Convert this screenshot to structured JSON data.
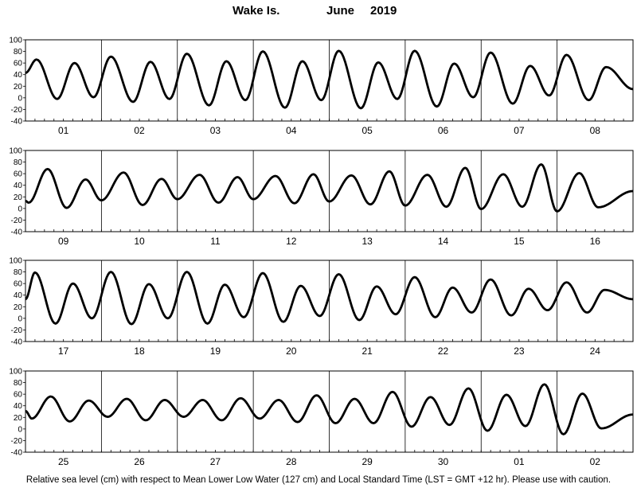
{
  "header": {
    "location": "Wake Is.",
    "month": "June",
    "year": "2019"
  },
  "footer": {
    "note": "Relative sea level (cm) with respect to Mean Lower Low Water (127 cm) and Local Standard Time (LST = GMT +12 hr). Please use with caution."
  },
  "chart_data": {
    "type": "line",
    "title": "Wake Is.          June   2019",
    "ylabel": "",
    "xlabel": "",
    "ylim": [
      -40,
      100
    ],
    "yticks": [
      -40,
      -20,
      0,
      20,
      40,
      60,
      80,
      100
    ],
    "grid": "vertical day lines",
    "hours_per_day": 24,
    "panels": [
      {
        "days": [
          "01",
          "02",
          "03",
          "04",
          "05",
          "06",
          "07",
          "08"
        ],
        "extrema": [
          [
            0,
            43
          ],
          [
            3.5,
            66
          ],
          [
            10,
            -2
          ],
          [
            15.5,
            60
          ],
          [
            21.5,
            1
          ],
          [
            27,
            71
          ],
          [
            34,
            -7
          ],
          [
            39.5,
            62
          ],
          [
            45.5,
            -2
          ],
          [
            51,
            76
          ],
          [
            58,
            -13
          ],
          [
            63.5,
            63
          ],
          [
            69.5,
            -4
          ],
          [
            75,
            80
          ],
          [
            82,
            -17
          ],
          [
            87.5,
            63
          ],
          [
            93.5,
            -4
          ],
          [
            99,
            81
          ],
          [
            106,
            -18
          ],
          [
            111.5,
            61
          ],
          [
            117.5,
            -2
          ],
          [
            123,
            81
          ],
          [
            130,
            -15
          ],
          [
            135.5,
            59
          ],
          [
            141.5,
            1
          ],
          [
            147,
            78
          ],
          [
            154,
            -10
          ],
          [
            159.5,
            55
          ],
          [
            165.5,
            4
          ],
          [
            171,
            74
          ],
          [
            178,
            -4
          ],
          [
            183.5,
            53
          ],
          [
            192,
            15
          ]
        ]
      },
      {
        "days": [
          "09",
          "10",
          "11",
          "12",
          "13",
          "14",
          "15",
          "16"
        ],
        "extrema": [
          [
            0,
            13
          ],
          [
            1,
            10
          ],
          [
            7,
            68
          ],
          [
            13,
            1
          ],
          [
            19,
            50
          ],
          [
            24,
            14
          ],
          [
            31,
            62
          ],
          [
            37,
            6
          ],
          [
            43,
            51
          ],
          [
            48,
            16
          ],
          [
            55,
            58
          ],
          [
            61,
            10
          ],
          [
            67,
            54
          ],
          [
            72,
            16
          ],
          [
            79,
            56
          ],
          [
            85,
            9
          ],
          [
            91,
            59
          ],
          [
            96,
            12
          ],
          [
            103,
            57
          ],
          [
            109,
            7
          ],
          [
            115,
            64
          ],
          [
            120,
            5
          ],
          [
            127,
            58
          ],
          [
            133,
            3
          ],
          [
            139,
            70
          ],
          [
            144,
            -1
          ],
          [
            151,
            59
          ],
          [
            157,
            3
          ],
          [
            163,
            76
          ],
          [
            168,
            -5
          ],
          [
            175,
            61
          ],
          [
            181,
            2
          ],
          [
            192,
            30
          ]
        ]
      },
      {
        "days": [
          "17",
          "18",
          "19",
          "20",
          "21",
          "22",
          "23",
          "24"
        ],
        "extrema": [
          [
            0,
            33
          ],
          [
            3,
            79
          ],
          [
            9.5,
            -9
          ],
          [
            15,
            60
          ],
          [
            21,
            0
          ],
          [
            27,
            80
          ],
          [
            33.5,
            -10
          ],
          [
            39,
            59
          ],
          [
            45,
            0
          ],
          [
            51,
            80
          ],
          [
            57.5,
            -9
          ],
          [
            63,
            58
          ],
          [
            69,
            2
          ],
          [
            75,
            78
          ],
          [
            81.5,
            -6
          ],
          [
            87,
            56
          ],
          [
            93,
            4
          ],
          [
            99,
            76
          ],
          [
            105.5,
            -3
          ],
          [
            111,
            55
          ],
          [
            117,
            7
          ],
          [
            123,
            71
          ],
          [
            129.5,
            2
          ],
          [
            135,
            53
          ],
          [
            141,
            10
          ],
          [
            147,
            67
          ],
          [
            153.5,
            5
          ],
          [
            159,
            51
          ],
          [
            165,
            14
          ],
          [
            171,
            62
          ],
          [
            177.5,
            10
          ],
          [
            183,
            49
          ],
          [
            192,
            33
          ]
        ]
      },
      {
        "days": [
          "25",
          "26",
          "27",
          "28",
          "29",
          "30",
          "01",
          "02"
        ],
        "extrema": [
          [
            0,
            31
          ],
          [
            2,
            18
          ],
          [
            8,
            56
          ],
          [
            14,
            13
          ],
          [
            20,
            49
          ],
          [
            26,
            21
          ],
          [
            32,
            52
          ],
          [
            38,
            15
          ],
          [
            44,
            50
          ],
          [
            50,
            21
          ],
          [
            56,
            50
          ],
          [
            62,
            15
          ],
          [
            68,
            53
          ],
          [
            74,
            18
          ],
          [
            80,
            50
          ],
          [
            86,
            12
          ],
          [
            92,
            58
          ],
          [
            98,
            10
          ],
          [
            104,
            52
          ],
          [
            110,
            10
          ],
          [
            116,
            64
          ],
          [
            122,
            4
          ],
          [
            128,
            55
          ],
          [
            134,
            7
          ],
          [
            140,
            70
          ],
          [
            146,
            -3
          ],
          [
            152,
            59
          ],
          [
            158,
            5
          ],
          [
            164,
            77
          ],
          [
            170,
            -9
          ],
          [
            176,
            61
          ],
          [
            182,
            1
          ],
          [
            192,
            25
          ]
        ]
      }
    ]
  }
}
